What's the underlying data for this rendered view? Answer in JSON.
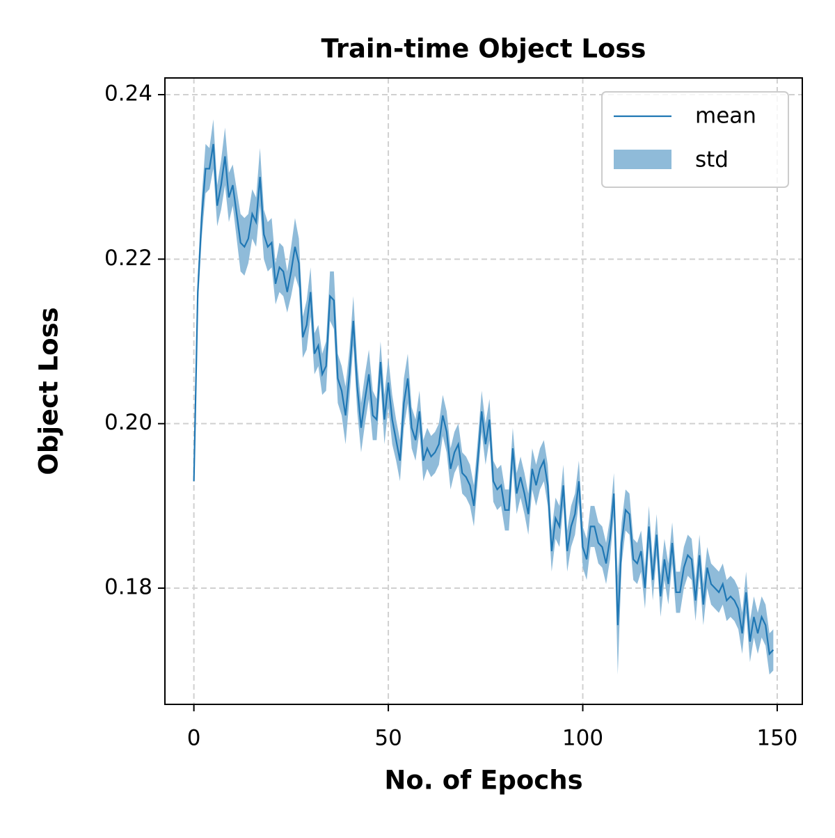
{
  "chart_data": {
    "type": "line-band",
    "title": "Train-time Object Loss",
    "xlabel": "No. of Epochs",
    "ylabel": "Object Loss",
    "x": [
      0,
      1,
      2,
      3,
      4,
      5,
      6,
      7,
      8,
      9,
      10,
      11,
      12,
      13,
      14,
      15,
      16,
      17,
      18,
      19,
      20,
      21,
      22,
      23,
      24,
      25,
      26,
      27,
      28,
      29,
      30,
      31,
      32,
      33,
      34,
      35,
      36,
      37,
      38,
      39,
      40,
      41,
      42,
      43,
      44,
      45,
      46,
      47,
      48,
      49,
      50,
      51,
      52,
      53,
      54,
      55,
      56,
      57,
      58,
      59,
      60,
      61,
      62,
      63,
      64,
      65,
      66,
      67,
      68,
      69,
      70,
      71,
      72,
      73,
      74,
      75,
      76,
      77,
      78,
      79,
      80,
      81,
      82,
      83,
      84,
      85,
      86,
      87,
      88,
      89,
      90,
      91,
      92,
      93,
      94,
      95,
      96,
      97,
      98,
      99,
      100,
      101,
      102,
      103,
      104,
      105,
      106,
      107,
      108,
      109,
      110,
      111,
      112,
      113,
      114,
      115,
      116,
      117,
      118,
      119,
      120,
      121,
      122,
      123,
      124,
      125,
      126,
      127,
      128,
      129,
      130,
      131,
      132,
      133,
      134,
      135,
      136,
      137,
      138,
      139,
      140,
      141,
      142,
      143,
      144,
      145,
      146,
      147,
      148,
      149
    ],
    "series": [
      {
        "name": "mean",
        "color": "#1f77b4",
        "values": [
          0.193,
          0.216,
          0.225,
          0.231,
          0.231,
          0.234,
          0.2265,
          0.229,
          0.2325,
          0.2275,
          0.229,
          0.2255,
          0.222,
          0.2215,
          0.2225,
          0.2255,
          0.2245,
          0.23,
          0.223,
          0.2215,
          0.222,
          0.217,
          0.219,
          0.2185,
          0.216,
          0.2185,
          0.2215,
          0.2195,
          0.2105,
          0.212,
          0.216,
          0.2085,
          0.2095,
          0.206,
          0.207,
          0.2155,
          0.215,
          0.2055,
          0.204,
          0.201,
          0.206,
          0.2125,
          0.2045,
          0.1995,
          0.203,
          0.206,
          0.201,
          0.2005,
          0.2075,
          0.2005,
          0.205,
          0.2005,
          0.198,
          0.1955,
          0.2025,
          0.2055,
          0.1995,
          0.198,
          0.2015,
          0.1955,
          0.197,
          0.196,
          0.1965,
          0.1975,
          0.201,
          0.199,
          0.1945,
          0.1965,
          0.1975,
          0.194,
          0.1935,
          0.1925,
          0.19,
          0.1955,
          0.2015,
          0.1975,
          0.2005,
          0.193,
          0.192,
          0.1925,
          0.1895,
          0.1895,
          0.197,
          0.1915,
          0.1935,
          0.1915,
          0.189,
          0.1945,
          0.1925,
          0.1945,
          0.1955,
          0.1925,
          0.1845,
          0.1885,
          0.1875,
          0.1925,
          0.1845,
          0.1875,
          0.189,
          0.193,
          0.185,
          0.1835,
          0.1875,
          0.1875,
          0.1855,
          0.185,
          0.183,
          0.186,
          0.1915,
          0.1755,
          0.1855,
          0.1895,
          0.189,
          0.1835,
          0.183,
          0.1845,
          0.18,
          0.1875,
          0.181,
          0.1865,
          0.179,
          0.1835,
          0.1805,
          0.1855,
          0.1795,
          0.1795,
          0.1825,
          0.184,
          0.1835,
          0.1785,
          0.184,
          0.178,
          0.1825,
          0.1805,
          0.18,
          0.1795,
          0.1805,
          0.1785,
          0.179,
          0.1785,
          0.1775,
          0.1745,
          0.1795,
          0.1735,
          0.1765,
          0.1745,
          0.1765,
          0.1755,
          0.172,
          0.1725
        ]
      },
      {
        "name": "std",
        "color": "#8fbbd9",
        "values": [
          0,
          0.002,
          0.0025,
          0.003,
          0.0025,
          0.003,
          0.0025,
          0.003,
          0.0035,
          0.003,
          0.0025,
          0.003,
          0.0035,
          0.0035,
          0.003,
          0.003,
          0.003,
          0.0035,
          0.003,
          0.003,
          0.003,
          0.0025,
          0.003,
          0.003,
          0.0025,
          0.003,
          0.0035,
          0.003,
          0.0025,
          0.003,
          0.003,
          0.0025,
          0.0025,
          0.0025,
          0.003,
          0.003,
          0.0035,
          0.003,
          0.003,
          0.0035,
          0.003,
          0.003,
          0.003,
          0.003,
          0.003,
          0.003,
          0.003,
          0.0025,
          0.0025,
          0.003,
          0.003,
          0.003,
          0.0025,
          0.0025,
          0.003,
          0.003,
          0.0025,
          0.0025,
          0.0025,
          0.0025,
          0.0025,
          0.0025,
          0.0025,
          0.0025,
          0.0025,
          0.0025,
          0.0025,
          0.0025,
          0.0025,
          0.0025,
          0.0025,
          0.0025,
          0.0025,
          0.0025,
          0.0025,
          0.0025,
          0.0025,
          0.0025,
          0.0025,
          0.0025,
          0.0025,
          0.0025,
          0.0025,
          0.0025,
          0.0025,
          0.0025,
          0.0025,
          0.0025,
          0.0025,
          0.0025,
          0.0025,
          0.0025,
          0.0025,
          0.0025,
          0.0025,
          0.0025,
          0.0025,
          0.0025,
          0.0025,
          0.0025,
          0.0025,
          0.0025,
          0.0025,
          0.0025,
          0.0025,
          0.0025,
          0.0025,
          0.0025,
          0.0025,
          0.006,
          0.0025,
          0.0025,
          0.0025,
          0.0025,
          0.0025,
          0.0025,
          0.0025,
          0.0025,
          0.0025,
          0.0025,
          0.0025,
          0.0025,
          0.0025,
          0.0025,
          0.0025,
          0.0025,
          0.0025,
          0.0025,
          0.0025,
          0.0025,
          0.0025,
          0.0025,
          0.0025,
          0.0025,
          0.0025,
          0.0025,
          0.0025,
          0.0025,
          0.0025,
          0.0025,
          0.0025,
          0.0025,
          0.0025,
          0.0025,
          0.0025,
          0.0025,
          0.0025,
          0.0025,
          0.0025,
          0.0025
        ]
      }
    ],
    "xlim": [
      -7.45,
      156.45
    ],
    "xticks": [
      0,
      50,
      100,
      150
    ],
    "ylim": [
      0.16587,
      0.24203
    ],
    "yticks": [
      0.18,
      {
        "value": 0.2,
        "label": "0.20"
      },
      0.22,
      0.24
    ],
    "grid": true,
    "legend": "upper right"
  }
}
